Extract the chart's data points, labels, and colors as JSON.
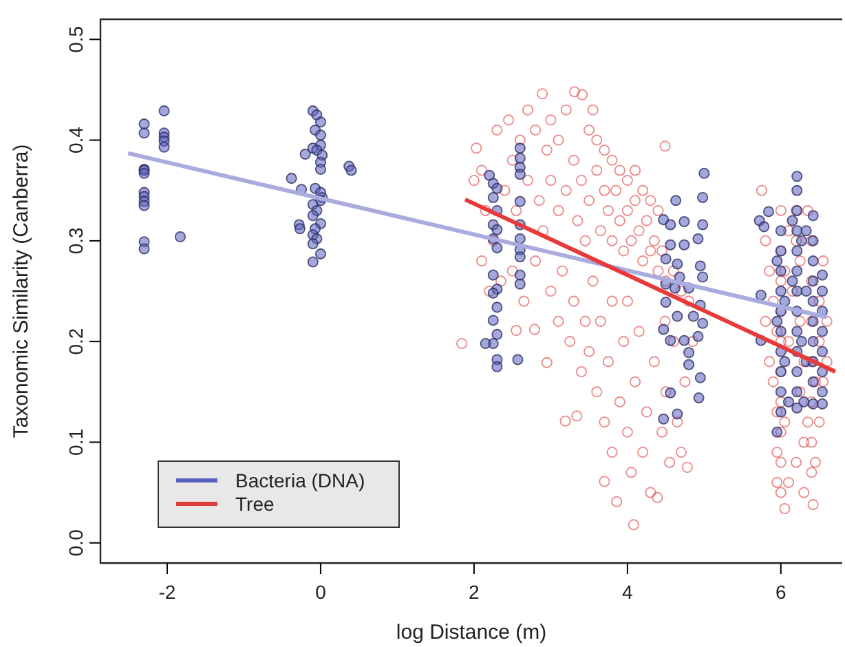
{
  "chart_data": {
    "type": "scatter",
    "xlabel": "log Distance (m)",
    "ylabel": "Taxonomic Similarity (Canberra)",
    "xlim": [
      -2.87,
      6.8
    ],
    "xticks": [
      -2,
      0,
      2,
      4,
      6
    ],
    "ylim": [
      -0.02,
      0.52
    ],
    "yticks": [
      {
        "value": 0,
        "label": "0.0"
      },
      0.1,
      0.2,
      0.3,
      0.4,
      0.5
    ],
    "legend": "bottom left",
    "grid": false,
    "series": [
      {
        "name": "Tree",
        "marker": "circle",
        "color": "#e03c3c",
        "x": [
          1.84,
          2.03,
          2.1,
          2.0,
          2.15,
          2.25,
          2.3,
          2.45,
          2.5,
          2.6,
          2.7,
          2.8,
          2.89,
          2.95,
          3.0,
          3.1,
          3.2,
          3.31,
          3.41,
          3.55,
          3.5,
          3.6,
          3.7,
          3.8,
          3.9,
          4.0,
          4.1,
          4.2,
          4.3,
          4.49,
          4.4,
          2.4,
          2.55,
          2.7,
          2.85,
          2.9,
          3.0,
          3.1,
          3.2,
          3.3,
          3.35,
          3.4,
          3.45,
          3.5,
          3.6,
          3.65,
          3.7,
          3.75,
          3.8,
          3.85,
          3.9,
          3.95,
          4.0,
          4.05,
          4.1,
          4.15,
          4.2,
          4.25,
          4.3,
          4.35,
          4.4,
          4.45,
          4.5,
          4.6,
          4.7,
          4.8,
          2.2,
          2.35,
          2.5,
          2.55,
          2.65,
          2.79,
          2.8,
          2.95,
          3.0,
          3.1,
          3.15,
          3.19,
          3.25,
          3.3,
          3.34,
          3.4,
          3.45,
          3.5,
          3.55,
          3.6,
          3.65,
          3.7,
          3.7,
          3.75,
          3.8,
          3.8,
          3.86,
          3.9,
          3.95,
          4.0,
          4.0,
          4.05,
          4.08,
          4.1,
          4.15,
          4.2,
          4.25,
          4.3,
          4.35,
          4.39,
          4.45,
          4.5,
          4.55,
          4.6,
          4.65,
          4.7,
          4.78,
          4.75,
          4.85,
          4.49,
          2.1,
          5.75,
          5.8,
          5.85,
          5.9,
          5.95,
          5.8,
          5.85,
          5.9,
          5.95,
          6.0,
          6.0,
          6.0,
          6.0,
          6.0,
          6.0,
          6.0,
          6.0,
          6.0,
          6.0,
          6.05,
          6.05,
          6.05,
          6.1,
          6.1,
          5.95,
          5.95,
          6.1,
          6.15,
          6.2,
          6.2,
          6.25,
          6.25,
          6.3,
          6.3,
          6.35,
          6.35,
          6.4,
          6.4,
          6.4,
          6.4,
          6.4,
          6.4,
          6.4,
          6.42,
          6.45,
          6.45,
          6.5,
          6.5,
          6.5,
          6.55,
          6.55,
          6.6,
          6.6,
          6.3,
          6.2,
          6.25
        ],
        "values": [
          0.198,
          0.392,
          0.37,
          0.36,
          0.33,
          0.3,
          0.41,
          0.42,
          0.38,
          0.4,
          0.43,
          0.41,
          0.446,
          0.39,
          0.42,
          0.4,
          0.43,
          0.448,
          0.445,
          0.43,
          0.41,
          0.4,
          0.39,
          0.38,
          0.37,
          0.36,
          0.37,
          0.35,
          0.34,
          0.394,
          0.33,
          0.35,
          0.33,
          0.36,
          0.34,
          0.31,
          0.36,
          0.33,
          0.35,
          0.38,
          0.32,
          0.36,
          0.3,
          0.34,
          0.37,
          0.31,
          0.35,
          0.33,
          0.3,
          0.35,
          0.32,
          0.29,
          0.33,
          0.3,
          0.34,
          0.31,
          0.28,
          0.32,
          0.29,
          0.3,
          0.27,
          0.29,
          0.26,
          0.27,
          0.25,
          0.24,
          0.25,
          0.26,
          0.27,
          0.211,
          0.24,
          0.212,
          0.28,
          0.179,
          0.25,
          0.22,
          0.27,
          0.121,
          0.2,
          0.24,
          0.126,
          0.17,
          0.22,
          0.19,
          0.26,
          0.15,
          0.22,
          0.061,
          0.12,
          0.18,
          0.24,
          0.09,
          0.041,
          0.14,
          0.2,
          0.11,
          0.24,
          0.07,
          0.018,
          0.16,
          0.21,
          0.09,
          0.13,
          0.05,
          0.18,
          0.045,
          0.11,
          0.15,
          0.08,
          0.2,
          0.12,
          0.09,
          0.075,
          0.16,
          0.2,
          0.22,
          0.28,
          0.35,
          0.3,
          0.27,
          0.24,
          0.21,
          0.22,
          0.18,
          0.16,
          0.13,
          0.33,
          0.29,
          0.26,
          0.23,
          0.2,
          0.17,
          0.14,
          0.11,
          0.08,
          0.05,
          0.034,
          0.12,
          0.27,
          0.06,
          0.2,
          0.09,
          0.06,
          0.31,
          0.25,
          0.33,
          0.3,
          0.22,
          0.15,
          0.1,
          0.18,
          0.33,
          0.12,
          0.3,
          0.26,
          0.22,
          0.18,
          0.14,
          0.1,
          0.07,
          0.038,
          0.16,
          0.08,
          0.24,
          0.2,
          0.12,
          0.28,
          0.16,
          0.22,
          0.18,
          0.05,
          0.08,
          0.28
        ]
      },
      {
        "name": "Bacteria (DNA)",
        "marker": "circle",
        "color": "#5a60c0",
        "x": [
          -2.3,
          -2.3,
          -2.3,
          -2.3,
          -2.3,
          -2.3,
          -2.3,
          -2.3,
          -2.3,
          -2.3,
          -2.3,
          -2.04,
          -2.04,
          -2.04,
          -2.04,
          -2.04,
          -1.83,
          -0.1,
          -0.05,
          0,
          -0.07,
          0,
          0,
          -0.1,
          -0.05,
          0.02,
          0,
          0,
          -0.2,
          -0.38,
          -0.25,
          -0.07,
          0,
          0.02,
          0,
          -0.1,
          -0.05,
          -0.1,
          0,
          -0.28,
          -0.27,
          -0.07,
          -0.1,
          -0.05,
          -0.1,
          0,
          -0.1,
          0.37,
          0.4,
          2.2,
          2.25,
          2.3,
          2.25,
          2.3,
          2.25,
          2.3,
          2.25,
          2.3,
          2.25,
          2.3,
          2.25,
          2.3,
          2.25,
          2.3,
          2.25,
          2.3,
          2.3,
          2.15,
          2.6,
          2.6,
          2.6,
          2.6,
          2.6,
          2.6,
          2.6,
          2.6,
          2.6,
          2.6,
          2.6,
          2.57,
          4.63,
          4.47,
          4.56,
          4.74,
          5.0,
          4.98,
          4.98,
          4.92,
          4.95,
          4.98,
          4.56,
          4.74,
          4.5,
          4.65,
          4.68,
          4.5,
          4.62,
          4.8,
          4.5,
          4.65,
          4.86,
          4.95,
          4.47,
          4.56,
          4.74,
          4.92,
          4.98,
          4.8,
          4.8,
          4.95,
          4.56,
          4.65,
          4.47,
          4.93,
          5.72,
          5.78,
          5.84,
          5.74,
          5.74,
          6.0,
          6.0,
          6.0,
          6.0,
          6.0,
          6.0,
          6.0,
          6.0,
          6.0,
          6.0,
          5.95,
          5.95,
          6.05,
          6.05,
          5.95,
          6.21,
          6.21,
          6.21,
          6.21,
          6.21,
          6.21,
          6.21,
          6.21,
          6.21,
          6.21,
          6.21,
          6.21,
          6.21,
          6.15,
          6.15,
          6.27,
          6.27,
          6.33,
          6.33,
          6.33,
          6.42,
          6.42,
          6.42,
          6.42,
          6.42,
          6.42,
          6.42,
          6.42,
          6.42,
          6.42,
          6.54,
          6.54,
          6.54,
          6.54,
          6.54,
          6.54,
          6.54,
          6.54,
          6.3,
          6.1
        ],
        "values": [
          0.416,
          0.407,
          0.371,
          0.37,
          0.367,
          0.348,
          0.344,
          0.339,
          0.335,
          0.299,
          0.292,
          0.429,
          0.407,
          0.403,
          0.399,
          0.393,
          0.304,
          0.429,
          0.425,
          0.418,
          0.41,
          0.405,
          0.395,
          0.392,
          0.39,
          0.385,
          0.378,
          0.371,
          0.386,
          0.362,
          0.351,
          0.352,
          0.348,
          0.343,
          0.34,
          0.336,
          0.33,
          0.325,
          0.317,
          0.316,
          0.312,
          0.312,
          0.306,
          0.302,
          0.297,
          0.287,
          0.279,
          0.374,
          0.37,
          0.365,
          0.357,
          0.352,
          0.343,
          0.33,
          0.316,
          0.311,
          0.302,
          0.293,
          0.266,
          0.252,
          0.248,
          0.234,
          0.221,
          0.207,
          0.198,
          0.182,
          0.175,
          0.198,
          0.392,
          0.382,
          0.373,
          0.366,
          0.339,
          0.316,
          0.302,
          0.291,
          0.284,
          0.266,
          0.257,
          0.182,
          0.34,
          0.321,
          0.316,
          0.319,
          0.367,
          0.343,
          0.316,
          0.302,
          0.275,
          0.264,
          0.296,
          0.296,
          0.282,
          0.277,
          0.264,
          0.257,
          0.253,
          0.253,
          0.239,
          0.225,
          0.225,
          0.236,
          0.212,
          0.201,
          0.201,
          0.205,
          0.218,
          0.189,
          0.177,
          0.164,
          0.149,
          0.128,
          0.123,
          0.144,
          0.32,
          0.314,
          0.329,
          0.246,
          0.201,
          0.31,
          0.29,
          0.27,
          0.25,
          0.23,
          0.21,
          0.19,
          0.17,
          0.15,
          0.13,
          0.28,
          0.22,
          0.24,
          0.18,
          0.11,
          0.364,
          0.35,
          0.33,
          0.31,
          0.29,
          0.27,
          0.25,
          0.23,
          0.21,
          0.19,
          0.17,
          0.15,
          0.134,
          0.32,
          0.26,
          0.3,
          0.2,
          0.31,
          0.25,
          0.18,
          0.325,
          0.3,
          0.28,
          0.26,
          0.24,
          0.22,
          0.2,
          0.18,
          0.16,
          0.138,
          0.266,
          0.25,
          0.23,
          0.21,
          0.19,
          0.17,
          0.15,
          0.138,
          0.14,
          0.14
        ]
      },
      {
        "type": "line",
        "color": "#a9acde",
        "x": [
          -2.51,
          6.6
        ],
        "values": [
          0.387,
          0.224
        ]
      },
      {
        "type": "line",
        "color": "#e83a3a",
        "x": [
          1.885,
          6.71
        ],
        "values": [
          0.341,
          0.17
        ]
      }
    ]
  }
}
